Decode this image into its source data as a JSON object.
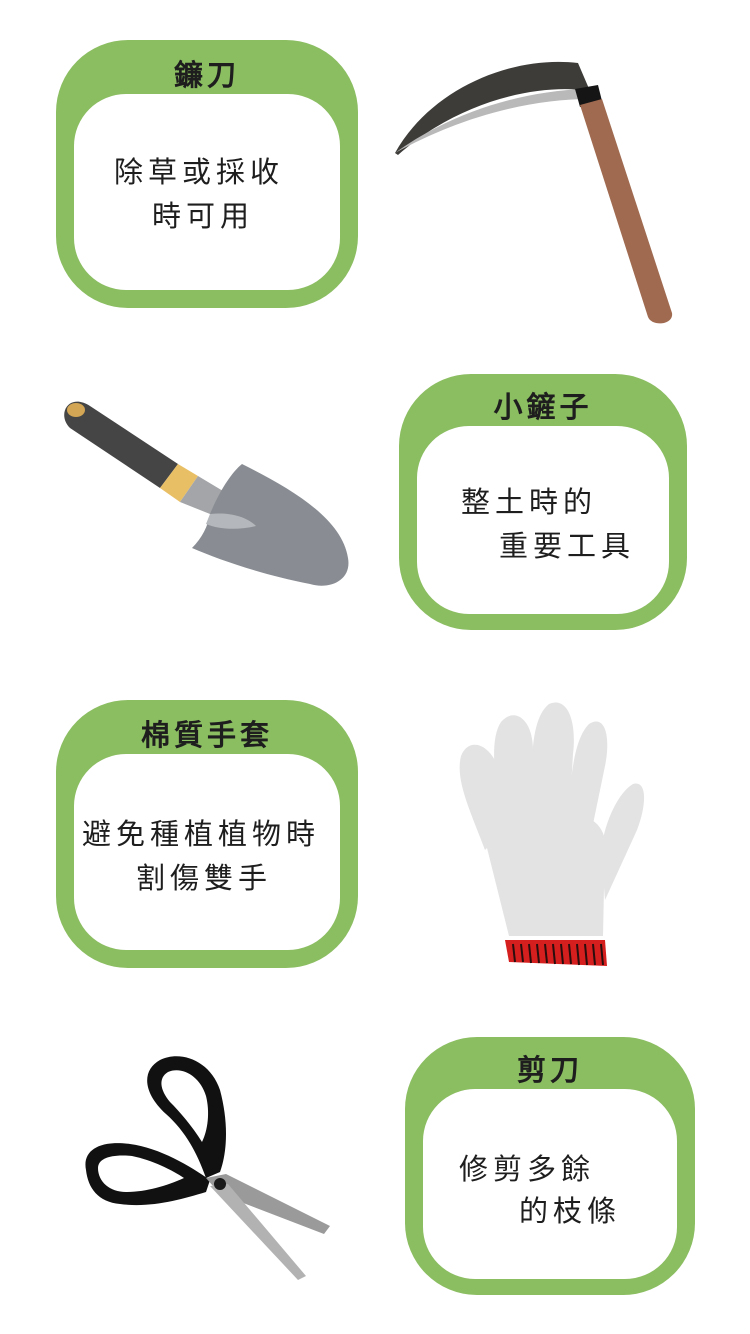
{
  "tools": [
    {
      "title": "鐮刀",
      "lines": [
        "除草或採收",
        "時可用"
      ],
      "icon": "sickle-icon"
    },
    {
      "title": "小鏟子",
      "lines": [
        "整土時的",
        "重要工具"
      ],
      "icon": "trowel-icon"
    },
    {
      "title": "棉質手套",
      "lines": [
        "避免種植植物時",
        "割傷雙手"
      ],
      "icon": "glove-icon"
    },
    {
      "title": "剪刀",
      "lines": [
        "修剪多餘",
        "的枝條"
      ],
      "icon": "scissors-icon"
    }
  ],
  "colors": {
    "card_frame": "#8bbd61",
    "card_inner": "#ffffff",
    "text": "#1e1e1e"
  }
}
